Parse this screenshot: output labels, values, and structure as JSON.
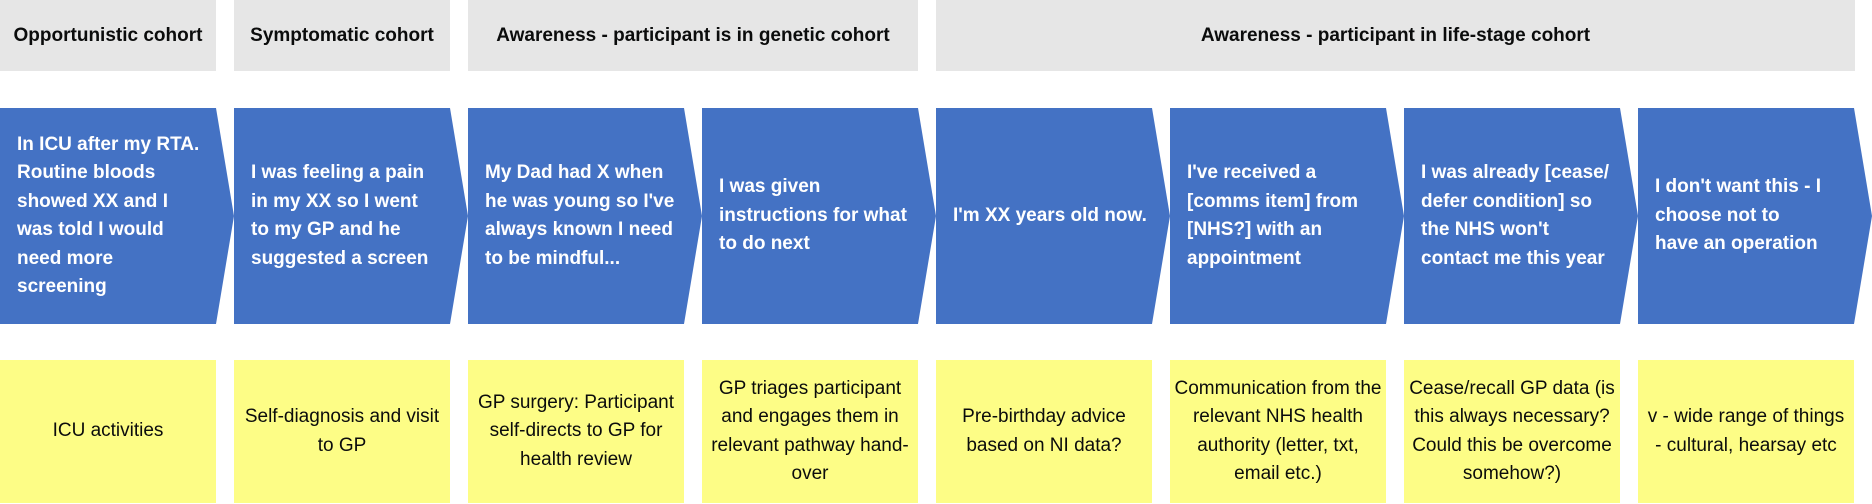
{
  "headers": [
    {
      "label": "Opportunistic cohort"
    },
    {
      "label": "Symptomatic cohort"
    },
    {
      "label": "Awareness - participant is in genetic cohort"
    },
    {
      "label": "Awareness - participant in life-stage cohort"
    }
  ],
  "steps": [
    {
      "text": "In ICU after my RTA. Routine bloods showed XX and I was told I would need more screening"
    },
    {
      "text": "I was feeling a pain in my XX so I went to my GP and he suggested a screen"
    },
    {
      "text": "My Dad had X when he was young so I've always known I need to be mindful..."
    },
    {
      "text": "I was given instructions for what to do next"
    },
    {
      "text": "I'm XX years old now."
    },
    {
      "text": "I've received a [comms item] from [NHS?] with an appointment"
    },
    {
      "text": "I was already [cease/ defer condition] so the NHS won't contact me this year"
    },
    {
      "text": "I don't want this - I choose not to have an operation"
    }
  ],
  "notes": [
    {
      "text": "ICU activities"
    },
    {
      "text": "Self-diagnosis and visit to GP"
    },
    {
      "text": "GP surgery: Participant self-directs to GP for health review"
    },
    {
      "text": "GP triages participant and engages them in relevant pathway hand-over"
    },
    {
      "text": "Pre-birthday advice based on NI data?"
    },
    {
      "text": "Communication from the relevant NHS health authority (letter, txt, email etc.)"
    },
    {
      "text": "Cease/recall GP data (is this always necessary? Could this be overcome somehow?)"
    },
    {
      "text": "v - wide range of things - cultural, hearsay etc"
    }
  ],
  "colors": {
    "header_bg": "#e6e6e6",
    "step_bg": "#4472c4",
    "note_bg": "#fdfd86",
    "text_dark": "#0b0c0c",
    "text_light": "#ffffff"
  }
}
